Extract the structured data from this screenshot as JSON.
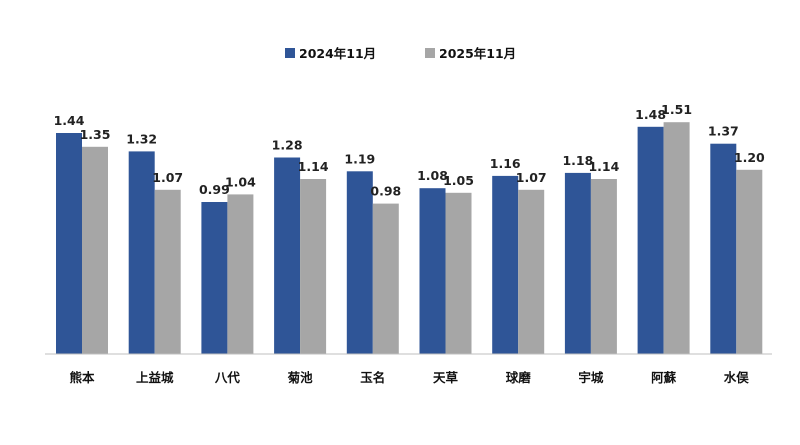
{
  "chart_data": {
    "type": "bar",
    "categories": [
      "熊本",
      "上益城",
      "八代",
      "菊池",
      "玉名",
      "天草",
      "球磨",
      "宇城",
      "阿蘇",
      "水俣"
    ],
    "series": [
      {
        "name": "2024年11月",
        "values": [
          1.44,
          1.32,
          0.99,
          1.28,
          1.19,
          1.08,
          1.16,
          1.18,
          1.48,
          1.37
        ],
        "color": "#2f5597"
      },
      {
        "name": "2025年11月",
        "values": [
          1.35,
          1.07,
          1.04,
          1.14,
          0.98,
          1.05,
          1.07,
          1.14,
          1.51,
          1.2
        ],
        "color": "#a6a6a6"
      }
    ],
    "value_labels": [
      [
        "1.44",
        "1.32",
        "0.99",
        "1.28",
        "1.19",
        "1.08",
        "1.16",
        "1.18",
        "1.48",
        "1.37"
      ],
      [
        "1.35",
        "1.07",
        "1.04",
        "1.14",
        "0.98",
        "1.05",
        "1.07",
        "1.14",
        "1.51",
        "1.20"
      ]
    ],
    "ylim": [
      0,
      1.6
    ],
    "grid": false,
    "legend_position": "top"
  }
}
